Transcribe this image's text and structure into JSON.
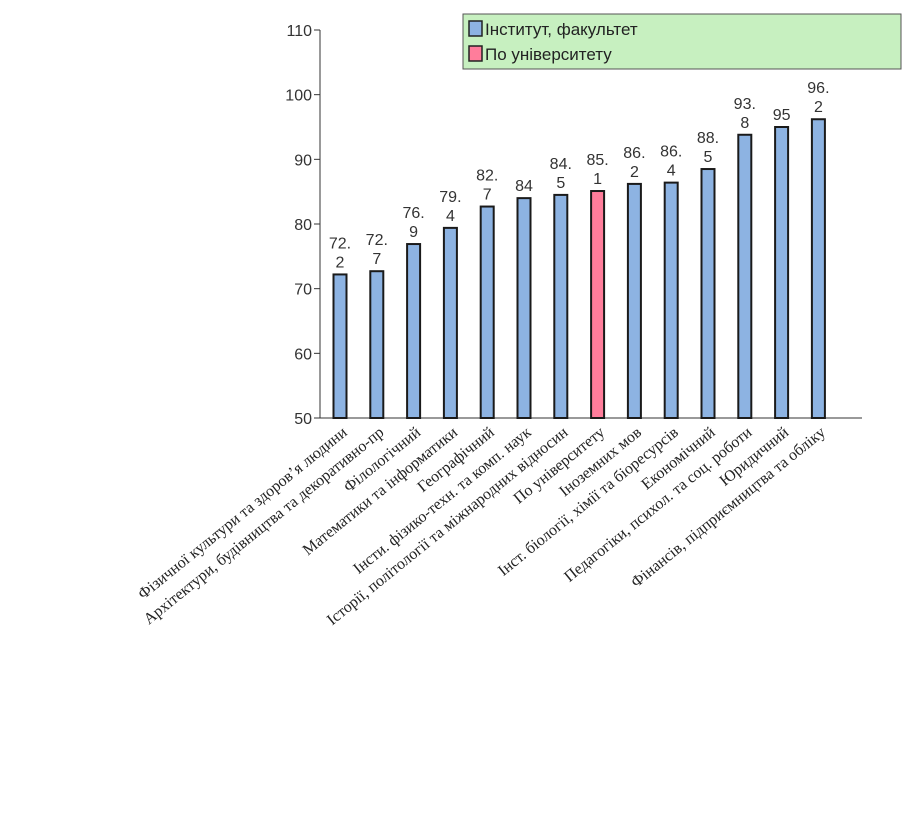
{
  "chart_data": {
    "type": "bar",
    "categories": [
      "Фізичної культури та здоров’я людини",
      "Архітектури, будівництва та декоративно-пр",
      "Філологічний",
      "Математики та інформатики",
      "Географічний",
      "Інсти. фізико-техн. та комп. наук",
      "Історії, політології та міжнародних відносин",
      "По університету",
      "Іноземних мов",
      "Інст. біології, хімії та біоресурсів",
      "Економічний",
      "Педагогіки, психол. та соц. роботи",
      "Юридичний",
      "Фінансів, підприємництва та обліку"
    ],
    "values": [
      72.2,
      72.7,
      76.9,
      79.4,
      82.7,
      84,
      84.5,
      85.1,
      86.2,
      86.4,
      88.5,
      93.8,
      95,
      96.2
    ],
    "value_labels": [
      [
        "72.",
        "2"
      ],
      [
        "72.",
        "7"
      ],
      [
        "76.",
        "9"
      ],
      [
        "79.",
        "4"
      ],
      [
        "82.",
        "7"
      ],
      [
        "84"
      ],
      [
        "84.",
        "5"
      ],
      [
        "85.",
        "1"
      ],
      [
        "86.",
        "2"
      ],
      [
        "86.",
        "4"
      ],
      [
        "88.",
        "5"
      ],
      [
        "93.",
        "8"
      ],
      [
        "95"
      ],
      [
        "96.",
        "2"
      ]
    ],
    "highlight_index": 7,
    "ylim": [
      50,
      110
    ],
    "yticks": [
      50,
      60,
      70,
      80,
      90,
      100,
      110
    ],
    "ytick_labels": [
      "50",
      "60",
      "70",
      "80",
      "90",
      "100",
      "110"
    ],
    "legend": [
      {
        "label": "Інститут, факультет",
        "color": "#8db3e2"
      },
      {
        "label": "По університету",
        "color": "#ff7d9b"
      }
    ],
    "legend_position": "top-right",
    "colors": {
      "bar": "#8db3e2",
      "highlight": "#ff7d9b",
      "legend_bg": "#c7f0c0",
      "axis": "#333333"
    },
    "title": "",
    "xlabel": "",
    "ylabel": ""
  }
}
